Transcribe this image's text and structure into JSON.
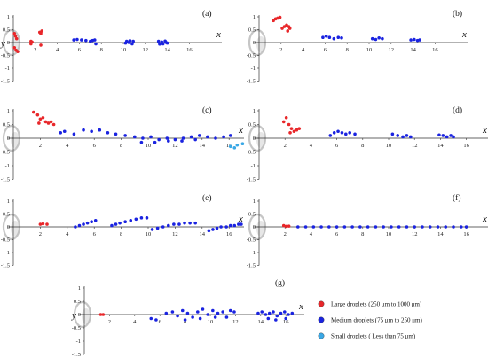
{
  "chart_data": [
    {
      "label": "(a)",
      "type": "scatter",
      "xlabel": "x",
      "ylabel": "y",
      "xticks": [
        2,
        4,
        6,
        8,
        10,
        12,
        14,
        16
      ],
      "yticks": [
        1,
        0.5,
        0,
        -0.5,
        -1,
        -1.5
      ],
      "ylim": [
        -1.5,
        1
      ],
      "xlim": [
        0,
        17
      ],
      "series": [
        {
          "name": "Large droplets (250 μm to 1000 μm)",
          "points": [
            [
              0.1,
              0.35
            ],
            [
              0.2,
              0.25
            ],
            [
              0.1,
              -0.2
            ],
            [
              0.25,
              -0.3
            ],
            [
              0.3,
              0.15
            ],
            [
              0.4,
              -0.35
            ],
            [
              1.6,
              0.05
            ],
            [
              1.6,
              -0.05
            ],
            [
              1.7,
              0.02
            ],
            [
              2.4,
              0.4
            ],
            [
              2.5,
              0.35
            ],
            [
              2.6,
              0.45
            ],
            [
              2.5,
              -0.1
            ]
          ]
        },
        {
          "name": "Medium droplets (75 μm to 250 μm)",
          "points": [
            [
              5.5,
              0.1
            ],
            [
              5.8,
              0.12
            ],
            [
              6.2,
              0.1
            ],
            [
              6.6,
              0.08
            ],
            [
              7.0,
              0.05
            ],
            [
              7.2,
              0.08
            ],
            [
              7.4,
              0.1
            ],
            [
              7.5,
              -0.05
            ],
            [
              10.3,
              0.05
            ],
            [
              10.5,
              0.0
            ],
            [
              10.8,
              -0.05
            ],
            [
              10.6,
              0.07
            ],
            [
              10.9,
              0.05
            ],
            [
              10.2,
              -0.02
            ],
            [
              13.2,
              0.05
            ],
            [
              13.5,
              0.02
            ],
            [
              13.8,
              0.06
            ],
            [
              13.9,
              0.0
            ],
            [
              13.6,
              -0.05
            ],
            [
              14.0,
              -0.02
            ],
            [
              13.3,
              -0.06
            ]
          ]
        }
      ]
    },
    {
      "label": "(b)",
      "type": "scatter",
      "xlabel": "x",
      "ylabel": "",
      "xticks": [
        2,
        4,
        6,
        8,
        10,
        12,
        14,
        16
      ],
      "yticks": [
        1,
        0.5,
        0,
        -0.5,
        -1,
        -1.5
      ],
      "ylim": [
        -1.5,
        1
      ],
      "xlim": [
        0,
        17
      ],
      "series": [
        {
          "name": "Large droplets (250 μm to 1000 μm)",
          "points": [
            [
              1.3,
              0.85
            ],
            [
              1.5,
              0.92
            ],
            [
              1.7,
              0.95
            ],
            [
              1.9,
              0.98
            ],
            [
              2.1,
              0.55
            ],
            [
              2.3,
              0.62
            ],
            [
              2.5,
              0.68
            ],
            [
              2.7,
              0.62
            ],
            [
              2.8,
              0.55
            ],
            [
              2.6,
              0.45
            ]
          ]
        },
        {
          "name": "Medium droplets (75 μm to 250 μm)",
          "points": [
            [
              5.8,
              0.2
            ],
            [
              6.1,
              0.25
            ],
            [
              6.4,
              0.2
            ],
            [
              6.8,
              0.15
            ],
            [
              7.2,
              0.2
            ],
            [
              7.5,
              0.18
            ],
            [
              10.3,
              0.15
            ],
            [
              10.6,
              0.12
            ],
            [
              10.9,
              0.18
            ],
            [
              11.2,
              0.15
            ],
            [
              13.8,
              0.1
            ],
            [
              14.1,
              0.12
            ],
            [
              14.4,
              0.08
            ],
            [
              14.6,
              0.1
            ]
          ]
        }
      ]
    },
    {
      "label": "(c)",
      "type": "scatter",
      "xlabel": "x",
      "ylabel": "",
      "xticks": [
        2,
        4,
        6,
        8,
        10,
        12,
        14,
        16
      ],
      "yticks": [
        1,
        0.5,
        0,
        -0.5,
        -1,
        -1.5
      ],
      "ylim": [
        -1.5,
        1
      ],
      "xlim": [
        0,
        17
      ],
      "series": [
        {
          "name": "Large droplets (250 μm to 1000 μm)",
          "points": [
            [
              1.5,
              0.95
            ],
            [
              1.8,
              0.85
            ],
            [
              2.0,
              0.7
            ],
            [
              2.2,
              0.75
            ],
            [
              2.4,
              0.6
            ],
            [
              2.6,
              0.55
            ],
            [
              2.8,
              0.6
            ],
            [
              3.0,
              0.5
            ],
            [
              1.9,
              0.55
            ]
          ]
        },
        {
          "name": "Medium droplets (75 μm to 250 μm)",
          "points": [
            [
              3.5,
              0.2
            ],
            [
              3.8,
              0.25
            ],
            [
              4.5,
              0.15
            ],
            [
              5.2,
              0.3
            ],
            [
              5.8,
              0.25
            ],
            [
              6.4,
              0.3
            ],
            [
              7.0,
              0.2
            ],
            [
              7.6,
              0.15
            ],
            [
              8.3,
              0.1
            ],
            [
              9.0,
              0.05
            ],
            [
              9.6,
              0.0
            ],
            [
              10.2,
              0.05
            ],
            [
              10.8,
              -0.05
            ],
            [
              11.4,
              0.0
            ],
            [
              12.0,
              -0.05
            ],
            [
              12.6,
              0.0
            ],
            [
              13.2,
              0.05
            ],
            [
              13.8,
              0.1
            ],
            [
              14.4,
              0.05
            ],
            [
              15.0,
              0.0
            ],
            [
              15.6,
              0.05
            ],
            [
              16.1,
              0.1
            ],
            [
              9.5,
              -0.15
            ],
            [
              10.5,
              -0.15
            ],
            [
              11.5,
              -0.1
            ],
            [
              12.5,
              -0.1
            ],
            [
              13.5,
              -0.05
            ]
          ]
        },
        {
          "name": "Small droplets ( Less than 75 μm)",
          "points": [
            [
              16.1,
              -0.3
            ],
            [
              16.6,
              -0.25
            ],
            [
              17.0,
              -0.2
            ],
            [
              16.4,
              -0.35
            ]
          ]
        }
      ]
    },
    {
      "label": "(d)",
      "type": "scatter",
      "xlabel": "x",
      "ylabel": "",
      "xticks": [
        2,
        4,
        6,
        8,
        10,
        12,
        14,
        16
      ],
      "yticks": [
        1,
        0.5,
        0,
        -0.5,
        -1,
        -1.5
      ],
      "ylim": [
        -1.5,
        1
      ],
      "xlim": [
        0,
        17
      ],
      "series": [
        {
          "name": "Large droplets (250 μm to 1000 μm)",
          "points": [
            [
              1.9,
              0.6
            ],
            [
              2.1,
              0.75
            ],
            [
              2.3,
              0.5
            ],
            [
              2.5,
              0.35
            ],
            [
              2.7,
              0.25
            ],
            [
              2.9,
              0.3
            ],
            [
              3.1,
              0.35
            ],
            [
              2.4,
              0.2
            ]
          ]
        },
        {
          "name": "Medium droplets (75 μm to 250 μm)",
          "points": [
            [
              5.5,
              0.1
            ],
            [
              5.8,
              0.2
            ],
            [
              6.1,
              0.25
            ],
            [
              6.4,
              0.2
            ],
            [
              6.7,
              0.15
            ],
            [
              7.0,
              0.2
            ],
            [
              7.4,
              0.15
            ],
            [
              10.3,
              0.15
            ],
            [
              10.7,
              0.1
            ],
            [
              11.1,
              0.05
            ],
            [
              11.4,
              0.1
            ],
            [
              11.7,
              0.05
            ],
            [
              13.9,
              0.12
            ],
            [
              14.2,
              0.1
            ],
            [
              14.5,
              0.05
            ],
            [
              14.8,
              0.1
            ],
            [
              15.0,
              0.05
            ]
          ]
        }
      ]
    },
    {
      "label": "(e)",
      "type": "scatter",
      "xlabel": "x",
      "ylabel": "",
      "xticks": [
        2,
        4,
        6,
        8,
        10,
        12,
        14,
        16
      ],
      "yticks": [
        1,
        0.5,
        0,
        -0.5,
        -1,
        -1.5
      ],
      "ylim": [
        -1.5,
        1
      ],
      "xlim": [
        0,
        17
      ],
      "series": [
        {
          "name": "Large droplets (250 μm to 1000 μm)",
          "points": [
            [
              2.0,
              0.1
            ],
            [
              2.2,
              0.12
            ],
            [
              2.5,
              0.1
            ]
          ]
        },
        {
          "name": "Medium droplets (75 μm to 250 μm)",
          "points": [
            [
              4.6,
              0.0
            ],
            [
              4.9,
              0.05
            ],
            [
              5.2,
              0.1
            ],
            [
              5.5,
              0.15
            ],
            [
              5.8,
              0.2
            ],
            [
              6.1,
              0.25
            ],
            [
              7.3,
              0.05
            ],
            [
              7.6,
              0.1
            ],
            [
              7.9,
              0.15
            ],
            [
              8.3,
              0.2
            ],
            [
              8.7,
              0.25
            ],
            [
              9.1,
              0.3
            ],
            [
              9.5,
              0.35
            ],
            [
              9.9,
              0.35
            ],
            [
              10.3,
              -0.1
            ],
            [
              10.7,
              -0.05
            ],
            [
              11.1,
              0.0
            ],
            [
              11.5,
              0.05
            ],
            [
              11.9,
              0.1
            ],
            [
              12.3,
              0.1
            ],
            [
              12.7,
              0.15
            ],
            [
              13.1,
              0.15
            ],
            [
              13.5,
              0.15
            ],
            [
              14.5,
              -0.15
            ],
            [
              14.8,
              -0.1
            ],
            [
              15.1,
              -0.05
            ],
            [
              15.4,
              0.0
            ],
            [
              15.8,
              0.0
            ],
            [
              16.1,
              0.05
            ],
            [
              16.4,
              0.05
            ],
            [
              16.7,
              0.1
            ],
            [
              16.9,
              0.1
            ]
          ]
        }
      ]
    },
    {
      "label": "(f)",
      "type": "scatter",
      "xlabel": "x",
      "ylabel": "",
      "xticks": [
        2,
        4,
        6,
        8,
        10,
        12,
        14,
        16
      ],
      "yticks": [
        1,
        0.5,
        0,
        -0.5,
        -1,
        -1.5
      ],
      "ylim": [
        -1.5,
        1
      ],
      "xlim": [
        0,
        17
      ],
      "series": [
        {
          "name": "Large droplets (250 μm to 1000 μm)",
          "points": [
            [
              1.9,
              0.05
            ],
            [
              2.1,
              0.02
            ],
            [
              2.3,
              0.03
            ]
          ]
        },
        {
          "name": "Medium droplets (75 μm to 250 μm)",
          "points": [
            [
              3.0,
              0.0
            ],
            [
              3.6,
              0.0
            ],
            [
              4.2,
              0.0
            ],
            [
              4.8,
              0.0
            ],
            [
              5.4,
              0.0
            ],
            [
              6.0,
              0.0
            ],
            [
              6.6,
              0.0
            ],
            [
              7.2,
              0.0
            ],
            [
              7.8,
              0.0
            ],
            [
              8.4,
              0.0
            ],
            [
              9.0,
              0.0
            ],
            [
              9.6,
              0.0
            ],
            [
              10.2,
              0.0
            ],
            [
              10.8,
              0.0
            ],
            [
              11.4,
              0.0
            ],
            [
              12.0,
              0.0
            ],
            [
              12.6,
              0.0
            ],
            [
              13.2,
              0.0
            ],
            [
              13.8,
              0.0
            ],
            [
              14.4,
              0.0
            ],
            [
              15.0,
              0.0
            ],
            [
              15.6,
              0.0
            ],
            [
              16.0,
              0.0
            ]
          ]
        }
      ]
    },
    {
      "label": "(g)",
      "type": "scatter",
      "xlabel": "x",
      "ylabel": "y",
      "xticks": [
        2,
        4,
        6,
        8,
        10,
        12,
        14,
        16
      ],
      "yticks": [
        1,
        0.5,
        0,
        -0.5,
        -1,
        -1.5
      ],
      "ylim": [
        -1.5,
        1
      ],
      "xlim": [
        0,
        17
      ],
      "series": [
        {
          "name": "Large droplets (250 μm to 1000 μm)",
          "points": [
            [
              1.3,
              0.0
            ],
            [
              1.5,
              0.0
            ]
          ]
        },
        {
          "name": "Medium droplets (75 μm to 250 μm)",
          "points": [
            [
              5.3,
              -0.15
            ],
            [
              5.7,
              -0.2
            ],
            [
              6.5,
              0.05
            ],
            [
              7.0,
              0.1
            ],
            [
              7.4,
              -0.05
            ],
            [
              7.8,
              0.15
            ],
            [
              8.2,
              0.05
            ],
            [
              8.6,
              -0.1
            ],
            [
              9.0,
              0.1
            ],
            [
              9.4,
              0.2
            ],
            [
              9.8,
              0.0
            ],
            [
              10.2,
              0.15
            ],
            [
              10.6,
              0.05
            ],
            [
              11.0,
              0.1
            ],
            [
              11.3,
              -0.1
            ],
            [
              11.6,
              0.15
            ],
            [
              11.9,
              0.1
            ],
            [
              8.0,
              -0.2
            ],
            [
              9.2,
              -0.15
            ],
            [
              10.4,
              -0.1
            ],
            [
              13.8,
              0.05
            ],
            [
              14.1,
              0.1
            ],
            [
              14.4,
              0.0
            ],
            [
              14.7,
              0.05
            ],
            [
              15.0,
              0.1
            ],
            [
              15.3,
              -0.05
            ],
            [
              15.6,
              0.05
            ],
            [
              15.9,
              0.1
            ],
            [
              16.2,
              0.0
            ],
            [
              16.5,
              0.05
            ],
            [
              14.6,
              -0.15
            ],
            [
              15.2,
              -0.2
            ],
            [
              16.0,
              -0.15
            ]
          ]
        }
      ]
    }
  ],
  "legend": {
    "items": [
      {
        "label": "Large droplets  (250 μm to 1000 μm)",
        "color": "#e8272a"
      },
      {
        "label": "Medium droplets (75 μm to 250 μm)",
        "color": "#1a23e0"
      },
      {
        "label": "Small droplets ( Less than 75 μm)",
        "color": "#3aa8e6"
      }
    ]
  },
  "colors": {
    "large": "#e8272a",
    "medium": "#1a23e0",
    "small": "#3aa8e6",
    "nozzle": "#b8b8b8"
  }
}
